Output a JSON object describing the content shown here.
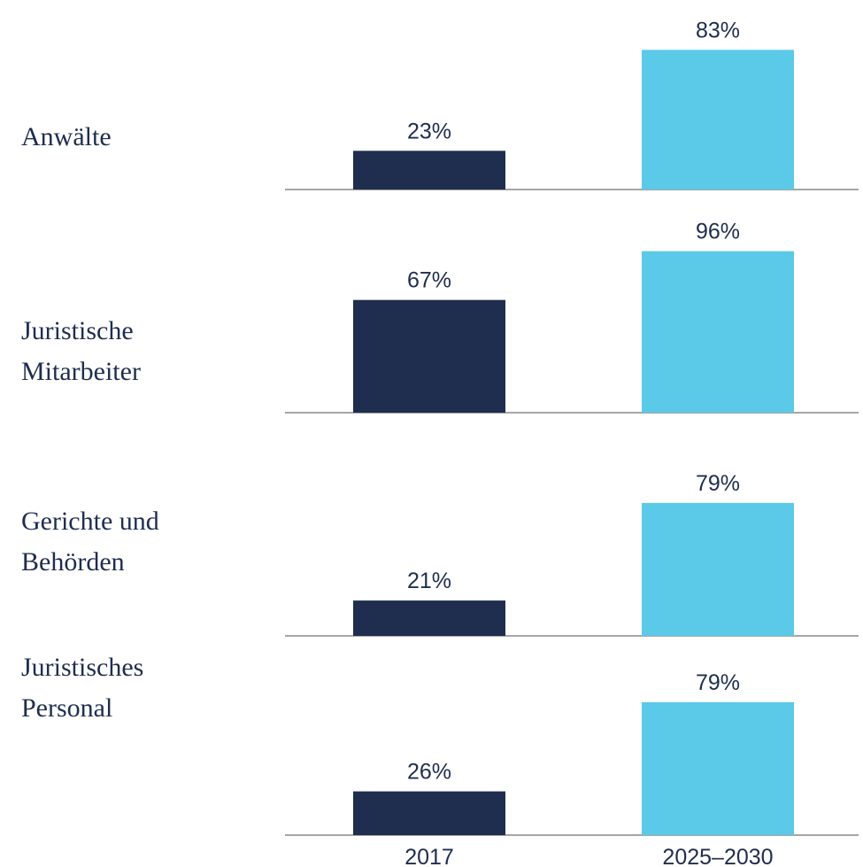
{
  "chart_data": {
    "type": "bar",
    "categories": [
      "Anwälte",
      "Juristische Mitarbeiter",
      "Gerichte und Behörden",
      "Juristisches Personal"
    ],
    "series": [
      {
        "name": "2017",
        "color": "#1f2d4e",
        "values": [
          23,
          67,
          21,
          26
        ],
        "value_labels": [
          "23%",
          "67%",
          "21%",
          "26%"
        ]
      },
      {
        "name": "2025–2030",
        "color": "#5bc9e8",
        "values": [
          83,
          96,
          79,
          79
        ],
        "value_labels": [
          "83%",
          "96%",
          "79%",
          "79%"
        ]
      }
    ],
    "ylim": [
      0,
      100
    ]
  }
}
